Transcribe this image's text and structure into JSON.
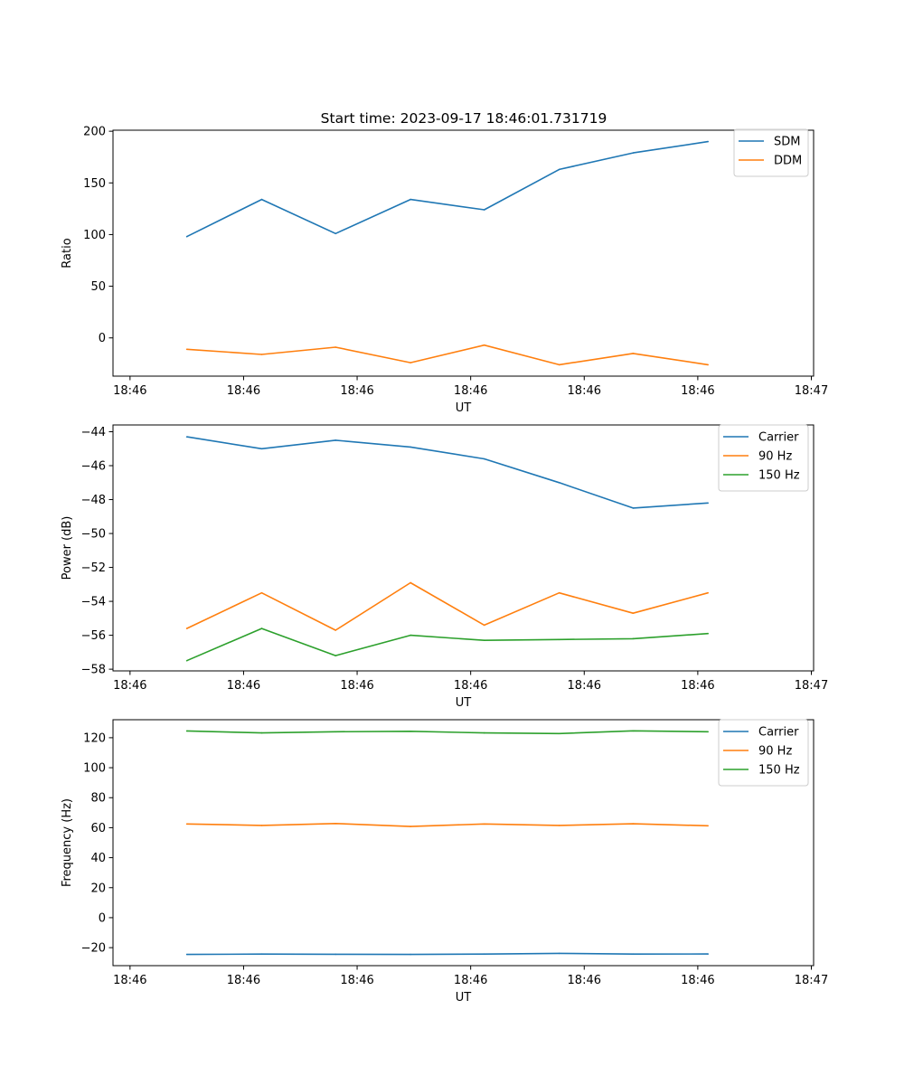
{
  "figure": {
    "title": "Start time: 2023-09-17 18:46:01.731719"
  },
  "chart_data": [
    {
      "type": "line",
      "title": "Start time: 2023-09-17 18:46:01.731719",
      "xlabel": "UT",
      "ylabel": "Ratio",
      "x_tick_labels": [
        "18:46",
        "18:46",
        "18:46",
        "18:46",
        "18:46",
        "18:46",
        "18:47"
      ],
      "x_tick_positions": [
        0,
        10,
        20,
        30,
        40,
        50,
        60
      ],
      "xlim": [
        -1.5,
        60.2
      ],
      "ylim": [
        -37,
        201
      ],
      "y_ticks": [
        0,
        50,
        100,
        150,
        200
      ],
      "y_tick_labels": [
        "0",
        "50",
        "100",
        "150",
        "200"
      ],
      "x": [
        5,
        11.6,
        18.1,
        24.7,
        31.2,
        37.8,
        44.3,
        50.9
      ],
      "series": [
        {
          "name": "SDM",
          "color": "#1f77b4",
          "values": [
            98,
            134,
            101,
            134,
            124,
            163,
            179,
            190
          ]
        },
        {
          "name": "DDM",
          "color": "#ff7f0e",
          "values": [
            -11,
            -16,
            -9,
            -24,
            -7,
            -26,
            -15,
            -26
          ]
        }
      ],
      "legend_position": "top-right"
    },
    {
      "type": "line",
      "title": "",
      "xlabel": "UT",
      "ylabel": "Power (dB)",
      "x_tick_labels": [
        "18:46",
        "18:46",
        "18:46",
        "18:46",
        "18:46",
        "18:46",
        "18:47"
      ],
      "x_tick_positions": [
        0,
        10,
        20,
        30,
        40,
        50,
        60
      ],
      "xlim": [
        -1.5,
        60.2
      ],
      "ylim": [
        -58.1,
        -43.6
      ],
      "y_ticks": [
        -58,
        -56,
        -54,
        -52,
        -50,
        -48,
        -46,
        -44
      ],
      "y_tick_labels": [
        "−58",
        "−56",
        "−54",
        "−52",
        "−50",
        "−48",
        "−46",
        "−44"
      ],
      "x": [
        5,
        11.6,
        18.1,
        24.7,
        31.2,
        37.8,
        44.3,
        50.9
      ],
      "series": [
        {
          "name": "Carrier",
          "color": "#1f77b4",
          "values": [
            -44.3,
            -45.0,
            -44.5,
            -44.9,
            -45.6,
            -47.0,
            -48.5,
            -48.2
          ]
        },
        {
          "name": "90 Hz",
          "color": "#ff7f0e",
          "values": [
            -55.6,
            -53.5,
            -55.7,
            -52.9,
            -55.4,
            -53.5,
            -54.7,
            -53.5
          ]
        },
        {
          "name": "150 Hz",
          "color": "#2ca02c",
          "values": [
            -57.5,
            -55.6,
            -57.2,
            -56.0,
            -56.3,
            -56.25,
            -56.2,
            -55.9
          ]
        }
      ],
      "legend_position": "top-right"
    },
    {
      "type": "line",
      "title": "",
      "xlabel": "UT",
      "ylabel": "Frequency (Hz)",
      "x_tick_labels": [
        "18:46",
        "18:46",
        "18:46",
        "18:46",
        "18:46",
        "18:46",
        "18:47"
      ],
      "x_tick_positions": [
        0,
        10,
        20,
        30,
        40,
        50,
        60
      ],
      "xlim": [
        -1.5,
        60.2
      ],
      "ylim": [
        -32,
        132
      ],
      "y_ticks": [
        -20,
        0,
        20,
        40,
        60,
        80,
        100,
        120
      ],
      "y_tick_labels": [
        "−20",
        "0",
        "20",
        "40",
        "60",
        "80",
        "100",
        "120"
      ],
      "x": [
        5,
        11.6,
        18.1,
        24.7,
        31.2,
        37.8,
        44.3,
        50.9
      ],
      "series": [
        {
          "name": "Carrier",
          "color": "#1f77b4",
          "values": [
            -24.5,
            -24.3,
            -24.4,
            -24.5,
            -24.3,
            -23.8,
            -24.3,
            -24.2
          ]
        },
        {
          "name": "90 Hz",
          "color": "#ff7f0e",
          "values": [
            62.5,
            61.5,
            62.8,
            60.8,
            62.5,
            61.5,
            62.6,
            61.3
          ]
        },
        {
          "name": "150 Hz",
          "color": "#2ca02c",
          "values": [
            124.5,
            123.2,
            124.0,
            124.3,
            123.2,
            122.8,
            124.6,
            124.0
          ]
        }
      ],
      "legend_position": "top-right"
    }
  ]
}
